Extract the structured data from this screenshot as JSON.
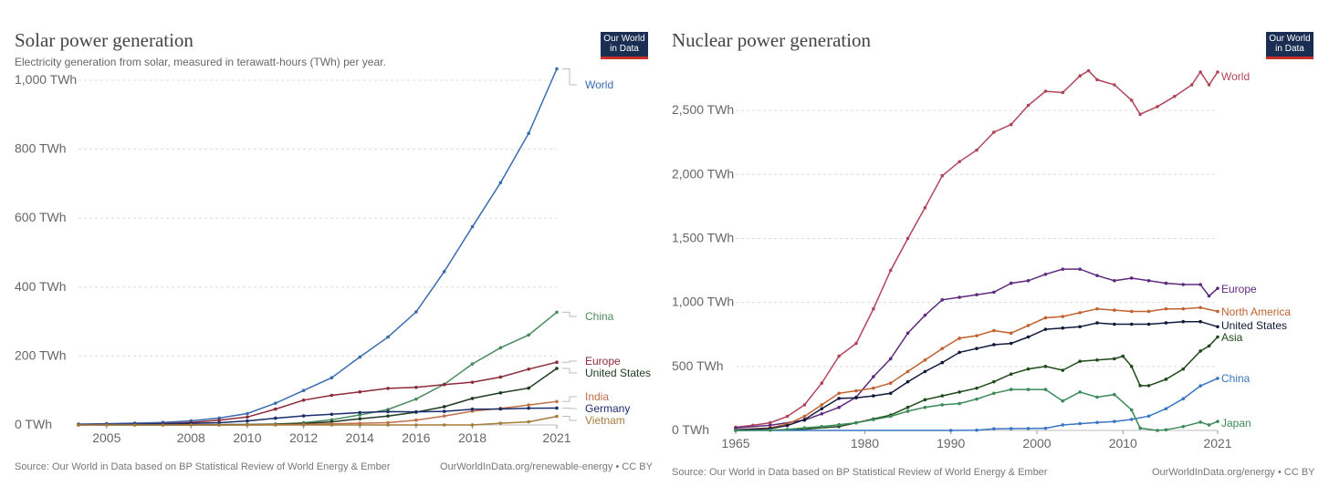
{
  "solar": {
    "title": "Solar power generation",
    "subtitle": "Electricity generation from solar, measured in terawatt-hours (TWh) per year.",
    "logo": [
      "Our World",
      "in Data"
    ],
    "source": "Source: Our World in Data based on BP Statistical Review of World Energy & Ember",
    "credit": "OurWorldInData.org/renewable-energy • CC BY"
  },
  "nuclear": {
    "title": "Nuclear power generation",
    "logo": [
      "Our World",
      "in Data"
    ],
    "source": "Source: Our World in Data based on BP Statistical Review of World Energy & Ember",
    "credit": "OurWorldInData.org/energy • CC BY"
  },
  "chart_data": [
    {
      "type": "line",
      "title": "Solar power generation",
      "ylim": [
        0,
        1000
      ],
      "xlim": [
        2004,
        2021
      ],
      "yticks": [
        0,
        200,
        400,
        600,
        800,
        1000
      ],
      "ytick_labels": [
        "0 TWh",
        "200 TWh",
        "400 TWh",
        "600 TWh",
        "800 TWh",
        "1,000 TWh"
      ],
      "xticks": [
        2005,
        2008,
        2010,
        2012,
        2014,
        2016,
        2018,
        2021
      ],
      "grid": true,
      "legend": "right end labels",
      "series": [
        {
          "name": "World",
          "color": "#3b6cb0",
          "x": [
            2004,
            2005,
            2006,
            2007,
            2008,
            2009,
            2010,
            2011,
            2012,
            2013,
            2014,
            2015,
            2016,
            2017,
            2018,
            2019,
            2020,
            2021
          ],
          "values": [
            2.6,
            3.8,
            5.2,
            7.5,
            12,
            20,
            33,
            63,
            100,
            137,
            197,
            255,
            328,
            445,
            575,
            703,
            846,
            1033
          ]
        },
        {
          "name": "China",
          "color": "#4a8a5e",
          "x": [
            2004,
            2005,
            2006,
            2007,
            2008,
            2009,
            2010,
            2011,
            2012,
            2013,
            2014,
            2015,
            2016,
            2017,
            2018,
            2019,
            2020,
            2021
          ],
          "values": [
            0,
            0,
            0,
            0,
            0,
            0,
            0.7,
            2.6,
            6.4,
            15,
            29,
            45,
            75,
            118,
            177,
            224,
            261,
            327
          ]
        },
        {
          "name": "Europe",
          "color": "#8c2a3a",
          "x": [
            2004,
            2005,
            2006,
            2007,
            2008,
            2009,
            2010,
            2011,
            2012,
            2013,
            2014,
            2015,
            2016,
            2017,
            2018,
            2019,
            2020,
            2021
          ],
          "values": [
            0.8,
            1.5,
            2.5,
            4,
            7.5,
            14,
            23,
            46,
            72,
            86,
            96,
            106,
            109,
            117,
            124,
            139,
            162,
            182
          ]
        },
        {
          "name": "United States",
          "color": "#1e3a24",
          "x": [
            2004,
            2005,
            2006,
            2007,
            2008,
            2009,
            2010,
            2011,
            2012,
            2013,
            2014,
            2015,
            2016,
            2017,
            2018,
            2019,
            2020,
            2021
          ],
          "values": [
            0.6,
            0.6,
            0.5,
            0.6,
            0.9,
            1,
            1.2,
            1.8,
            4.3,
            9,
            18,
            26,
            37,
            53,
            77,
            93,
            107,
            164
          ]
        },
        {
          "name": "India",
          "color": "#c0704a",
          "x": [
            2004,
            2005,
            2006,
            2007,
            2008,
            2009,
            2010,
            2011,
            2012,
            2013,
            2014,
            2015,
            2016,
            2017,
            2018,
            2019,
            2020,
            2021
          ],
          "values": [
            0,
            0,
            0,
            0,
            0,
            0,
            0.1,
            0.8,
            2.1,
            3.4,
            4.9,
            6.6,
            14,
            26,
            40,
            48,
            58,
            68
          ]
        },
        {
          "name": "Germany",
          "color": "#1a2d6b",
          "x": [
            2004,
            2005,
            2006,
            2007,
            2008,
            2009,
            2010,
            2011,
            2012,
            2013,
            2014,
            2015,
            2016,
            2017,
            2018,
            2019,
            2020,
            2021
          ],
          "values": [
            0.6,
            1.3,
            2.2,
            3.1,
            4.4,
            6.6,
            11.7,
            19.6,
            26.4,
            31,
            36,
            38.7,
            38.1,
            39.4,
            45.8,
            46.4,
            48.6,
            49
          ]
        },
        {
          "name": "Vietnam",
          "color": "#a67c3a",
          "x": [
            2004,
            2005,
            2006,
            2007,
            2008,
            2009,
            2010,
            2011,
            2012,
            2013,
            2014,
            2015,
            2016,
            2017,
            2018,
            2019,
            2020,
            2021
          ],
          "values": [
            0,
            0,
            0,
            0,
            0,
            0,
            0,
            0,
            0,
            0,
            0,
            0,
            0,
            0,
            0.1,
            5,
            9,
            25
          ]
        }
      ]
    },
    {
      "type": "line",
      "title": "Nuclear power generation",
      "ylim": [
        0,
        2800
      ],
      "xlim": [
        1965,
        2021
      ],
      "yticks": [
        0,
        500,
        1000,
        1500,
        2000,
        2500
      ],
      "ytick_labels": [
        "0 TWh",
        "500 TWh",
        "1,000 TWh",
        "1,500 TWh",
        "2,000 TWh",
        "2,500 TWh"
      ],
      "xticks": [
        1965,
        1980,
        1990,
        2000,
        2010,
        2021
      ],
      "grid": true,
      "legend": "right end labels",
      "series": [
        {
          "name": "World",
          "color": "#b0455a",
          "x": [
            1965,
            1967,
            1969,
            1971,
            1973,
            1975,
            1977,
            1979,
            1981,
            1983,
            1985,
            1987,
            1989,
            1991,
            1993,
            1995,
            1997,
            1999,
            2001,
            2003,
            2005,
            2006,
            2007,
            2009,
            2011,
            2012,
            2014,
            2016,
            2018,
            2019,
            2020,
            2021
          ],
          "values": [
            25,
            40,
            60,
            110,
            200,
            370,
            580,
            680,
            950,
            1250,
            1500,
            1740,
            1990,
            2100,
            2190,
            2330,
            2390,
            2540,
            2650,
            2640,
            2770,
            2810,
            2740,
            2700,
            2580,
            2470,
            2530,
            2610,
            2700,
            2800,
            2700,
            2800
          ]
        },
        {
          "name": "Europe",
          "color": "#5e2a7e",
          "x": [
            1965,
            1969,
            1973,
            1975,
            1977,
            1979,
            1981,
            1983,
            1985,
            1987,
            1989,
            1991,
            1993,
            1995,
            1997,
            1999,
            2001,
            2003,
            2005,
            2007,
            2009,
            2011,
            2013,
            2015,
            2017,
            2019,
            2020,
            2021
          ],
          "values": [
            20,
            40,
            80,
            130,
            180,
            260,
            420,
            560,
            760,
            900,
            1020,
            1040,
            1060,
            1080,
            1150,
            1170,
            1220,
            1260,
            1260,
            1210,
            1170,
            1190,
            1170,
            1150,
            1140,
            1140,
            1050,
            1110
          ]
        },
        {
          "name": "North America",
          "color": "#c0612f",
          "x": [
            1965,
            1969,
            1971,
            1973,
            1975,
            1977,
            1979,
            1981,
            1983,
            1985,
            1987,
            1989,
            1991,
            1993,
            1995,
            1997,
            1999,
            2001,
            2003,
            2005,
            2007,
            2009,
            2011,
            2013,
            2015,
            2017,
            2019,
            2021
          ],
          "values": [
            5,
            20,
            50,
            110,
            200,
            290,
            310,
            330,
            370,
            460,
            550,
            640,
            720,
            740,
            780,
            760,
            820,
            880,
            890,
            920,
            950,
            940,
            930,
            930,
            950,
            950,
            960,
            930
          ]
        },
        {
          "name": "United States",
          "color": "#111a3a",
          "x": [
            1965,
            1969,
            1971,
            1973,
            1975,
            1977,
            1979,
            1981,
            1983,
            1985,
            1987,
            1989,
            1991,
            1993,
            1995,
            1997,
            1999,
            2001,
            2003,
            2005,
            2007,
            2009,
            2011,
            2013,
            2015,
            2017,
            2019,
            2021
          ],
          "values": [
            4,
            15,
            38,
            85,
            170,
            250,
            255,
            270,
            290,
            380,
            460,
            530,
            610,
            640,
            670,
            680,
            730,
            790,
            800,
            810,
            840,
            830,
            830,
            830,
            840,
            850,
            850,
            810
          ]
        },
        {
          "name": "Asia",
          "color": "#1f4a1a",
          "x": [
            1965,
            1969,
            1973,
            1977,
            1979,
            1981,
            1983,
            1985,
            1987,
            1989,
            1991,
            1993,
            1995,
            1997,
            1999,
            2001,
            2003,
            2005,
            2007,
            2009,
            2010,
            2011,
            2012,
            2013,
            2015,
            2017,
            2019,
            2020,
            2021
          ],
          "values": [
            0,
            3,
            10,
            30,
            60,
            90,
            120,
            180,
            240,
            270,
            300,
            330,
            380,
            440,
            480,
            500,
            470,
            540,
            550,
            560,
            580,
            500,
            350,
            350,
            400,
            480,
            620,
            660,
            730
          ]
        },
        {
          "name": "China",
          "color": "#3a75c4",
          "x": [
            1965,
            1990,
            1993,
            1995,
            1997,
            1999,
            2001,
            2003,
            2005,
            2007,
            2009,
            2011,
            2013,
            2015,
            2017,
            2019,
            2021
          ],
          "values": [
            0,
            0,
            2,
            13,
            14,
            15,
            17,
            43,
            53,
            62,
            70,
            86,
            112,
            170,
            248,
            348,
            407
          ]
        },
        {
          "name": "Japan",
          "color": "#3c8a5a",
          "x": [
            1965,
            1969,
            1971,
            1973,
            1975,
            1977,
            1979,
            1981,
            1983,
            1985,
            1987,
            1989,
            1991,
            1993,
            1995,
            1997,
            1999,
            2001,
            2003,
            2005,
            2007,
            2009,
            2011,
            2012,
            2014,
            2015,
            2017,
            2019,
            2020,
            2021
          ],
          "values": [
            0,
            2,
            8,
            20,
            30,
            45,
            60,
            85,
            110,
            150,
            180,
            200,
            210,
            245,
            290,
            320,
            320,
            320,
            230,
            300,
            260,
            280,
            160,
            18,
            0,
            5,
            30,
            65,
            43,
            70
          ]
        }
      ]
    }
  ]
}
